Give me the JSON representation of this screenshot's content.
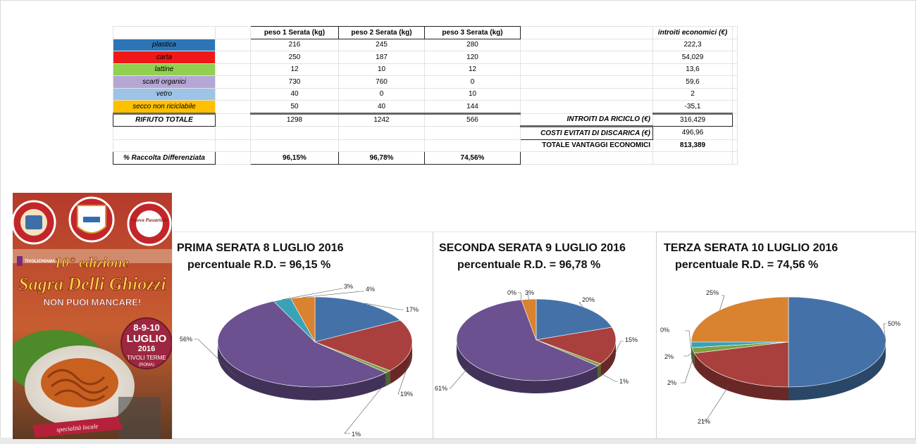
{
  "table": {
    "headers": [
      "peso 1 Serata  (kg)",
      "peso 2 Serata  (kg)",
      "peso 3  Serata  (kg)"
    ],
    "income_header": "introiti economici (€)",
    "rows": [
      {
        "label": "plastica",
        "color": "#2E75B6",
        "values": [
          "216",
          "245",
          "280"
        ],
        "income": "222,3"
      },
      {
        "label": "carta",
        "color": "#F01818",
        "values": [
          "250",
          "187",
          "120"
        ],
        "income": "54,029"
      },
      {
        "label": "lattine",
        "color": "#92D050",
        "values": [
          "12",
          "10",
          "12"
        ],
        "income": "13,6"
      },
      {
        "label": "scarti organici",
        "color": "#B4A7D6",
        "values": [
          "730",
          "760",
          "0"
        ],
        "income": "59,6"
      },
      {
        "label": "vetro",
        "color": "#9DC3E6",
        "values": [
          "40",
          "0",
          "10"
        ],
        "income": "2"
      },
      {
        "label": "secco non riciclabile",
        "color": "#FFC000",
        "values": [
          "50",
          "40",
          "144"
        ],
        "income": "-35,1"
      }
    ],
    "total": {
      "label": "RIFIUTO TOTALE",
      "values": [
        "1298",
        "1242",
        "566"
      ]
    },
    "summary": [
      {
        "label": "INTROITI DA RICICLO (€)",
        "value": "316,429"
      },
      {
        "label": "COSTI EVITATI DI DISCARICA (€)",
        "value": "496,96"
      },
      {
        "label": "TOTALE VANTAGGI ECONOMICI",
        "value": "813,389"
      }
    ],
    "percent": {
      "label": "% Raccolta Differenziata",
      "values": [
        "96,15%",
        "96,78%",
        "74,56%"
      ]
    }
  },
  "poster": {
    "edition": "10° edizione",
    "name": "Sagra Delli Ghiozzi",
    "tagline": "NON PUOI MANCARE!",
    "dates": "8-9-10",
    "month": "LUGLIO",
    "year": "2016",
    "place": "TIVOLI TERME",
    "region": "(ROMA)",
    "brand": "TIVOLICHIAMA",
    "ribbon": "specialità locale",
    "seal_left": "CON IL PATROCINIO GRATUITO DEL COMUNE DI TIVOLI",
    "seal_right": "PIAZZA BARTOLOMEO DELLA PIETRA TIVOLI TERME",
    "seal_right_inner": "Nuova Passariello"
  },
  "colors": {
    "plastica": "#4472A8",
    "carta": "#A9403D",
    "lattine": "#7EA144",
    "scarti": "#6B5190",
    "vetro": "#3AA2B6",
    "secco": "#D9822F"
  },
  "chart_data": [
    {
      "type": "pie",
      "title": "PRIMA SERATA  8 LUGLIO 2016",
      "subtitle": "percentuale R.D. = 96,15 %",
      "slices": [
        {
          "key": "plastica",
          "value": 17,
          "label": "17%"
        },
        {
          "key": "carta",
          "value": 19,
          "label": "19%"
        },
        {
          "key": "lattine",
          "value": 1,
          "label": "1%"
        },
        {
          "key": "scarti",
          "value": 56,
          "label": "56%"
        },
        {
          "key": "vetro",
          "value": 3,
          "label": "3%"
        },
        {
          "key": "secco",
          "value": 4,
          "label": "4%"
        }
      ]
    },
    {
      "type": "pie",
      "title": "SECONDA SERATA  9 LUGLIO 2016",
      "subtitle": "percentuale R.D. = 96,78 %",
      "slices": [
        {
          "key": "plastica",
          "value": 20,
          "label": "20%"
        },
        {
          "key": "carta",
          "value": 15,
          "label": "15%"
        },
        {
          "key": "lattine",
          "value": 1,
          "label": "1%"
        },
        {
          "key": "scarti",
          "value": 61,
          "label": "61%"
        },
        {
          "key": "vetro",
          "value": 0,
          "label": "0%"
        },
        {
          "key": "secco",
          "value": 3,
          "label": "3%"
        }
      ]
    },
    {
      "type": "pie",
      "title": "TERZA SERATA  10 LUGLIO 2016",
      "subtitle": "percentuale R.D. = 74,56 %",
      "slices": [
        {
          "key": "plastica",
          "value": 50,
          "label": "50%"
        },
        {
          "key": "carta",
          "value": 21,
          "label": "21%"
        },
        {
          "key": "lattine",
          "value": 2,
          "label": "2%"
        },
        {
          "key": "scarti",
          "value": 0,
          "label": "0%"
        },
        {
          "key": "vetro",
          "value": 2,
          "label": "2%"
        },
        {
          "key": "secco",
          "value": 25,
          "label": "25%"
        }
      ]
    }
  ]
}
